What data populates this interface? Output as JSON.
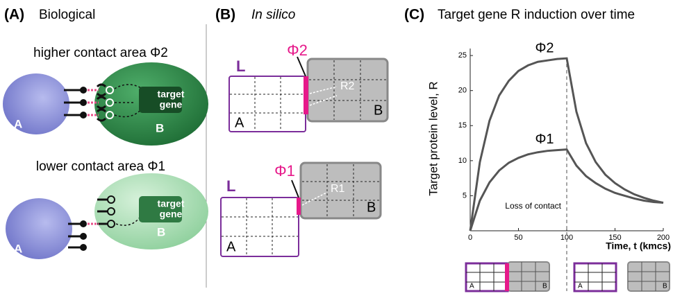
{
  "panel_a": {
    "label": "(A)",
    "title": "Biological",
    "top": {
      "caption": "higher contact area Φ2",
      "cell_a": "A",
      "gene": [
        "target",
        "gene"
      ],
      "cell_b": "B"
    },
    "bottom": {
      "caption": "lower contact area Φ1",
      "cell_a": "A",
      "gene": [
        "target",
        "gene"
      ],
      "cell_b": "B"
    }
  },
  "panel_b": {
    "label": "(B)",
    "title": "In silico",
    "top": {
      "contact": "Φ2",
      "ligand": "L",
      "receptor": "R2",
      "cell_a": "A",
      "cell_b": "B"
    },
    "bottom": {
      "contact": "Φ1",
      "ligand": "L",
      "receptor": "R1",
      "cell_a": "A",
      "cell_b": "B"
    }
  },
  "panel_c_label": "(C)",
  "chart_data": {
    "type": "line",
    "title": "Target gene R induction over time",
    "xlabel": "Time, t (kmcs)",
    "ylabel": "Target protein level, R",
    "x": [
      0,
      10,
      20,
      30,
      40,
      50,
      60,
      70,
      80,
      90,
      100,
      110,
      120,
      130,
      140,
      150,
      160,
      170,
      180,
      190,
      200
    ],
    "series": [
      {
        "name": "Φ2",
        "color": "#555555",
        "values": [
          0,
          9.8,
          15.7,
          19.3,
          21.4,
          22.8,
          23.6,
          24.1,
          24.3,
          24.5,
          24.6,
          17,
          12.5,
          9.8,
          8,
          6.8,
          5.9,
          5.2,
          4.7,
          4.3,
          4.0
        ]
      },
      {
        "name": "Φ1",
        "color": "#555555",
        "values": [
          0,
          4.3,
          6.9,
          8.6,
          9.7,
          10.4,
          10.9,
          11.2,
          11.4,
          11.5,
          11.6,
          9.3,
          7.8,
          6.8,
          6.0,
          5.4,
          5.0,
          4.6,
          4.3,
          4.1,
          4.0
        ]
      }
    ],
    "xlim": [
      0,
      200
    ],
    "xticks": [
      0,
      50,
      100,
      150,
      200
    ],
    "ylim": [
      0,
      26
    ],
    "yticks": [
      5,
      10,
      15,
      20,
      25
    ],
    "annotations": [
      {
        "text": "Loss of contact",
        "x": 100
      }
    ]
  },
  "contact_icons": {
    "before": [
      "A",
      "B"
    ],
    "after": [
      "A",
      "B"
    ]
  }
}
